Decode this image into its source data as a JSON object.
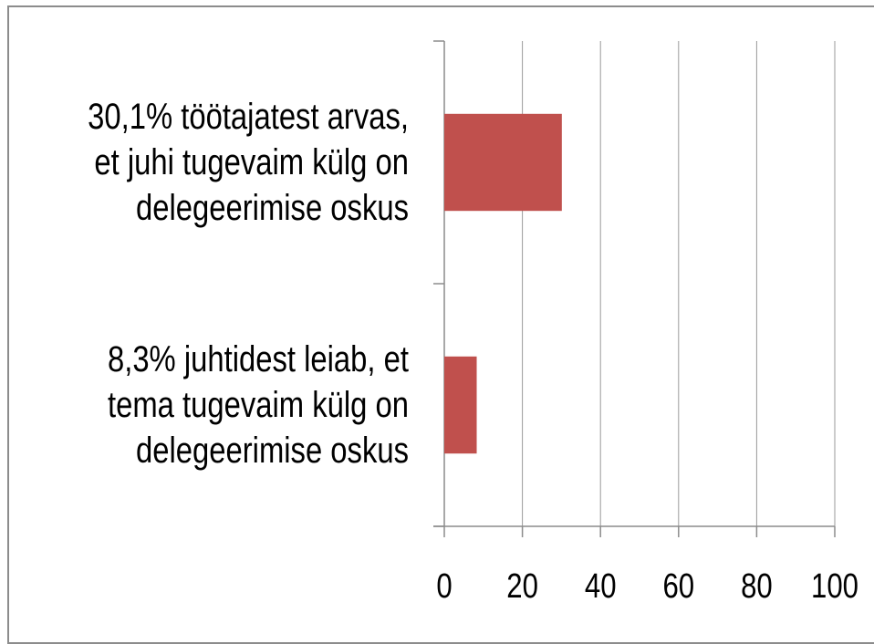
{
  "chart_data": {
    "type": "barh",
    "categories": [
      "30,1% töötajatest arvas,\net juhi tugevaim külg on\ndelegeerimise oskus",
      "8,3% juhtidest leiab, et\ntema tugevaim külg on\ndelegeerimise oskus"
    ],
    "values": [
      30.1,
      8.3
    ],
    "color": "#c0504d",
    "xlim": [
      0,
      100
    ],
    "xticks": [
      0,
      20,
      40,
      60,
      80,
      100
    ],
    "grid": true
  }
}
